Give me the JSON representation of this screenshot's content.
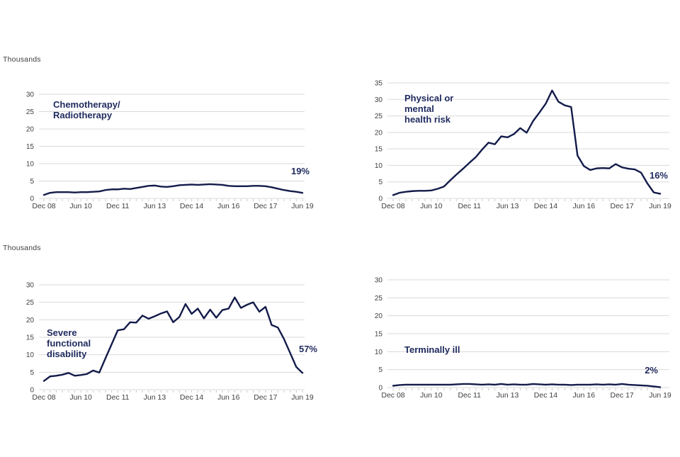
{
  "colors": {
    "background": "#ffffff",
    "line": "#131b4a",
    "title": "#1f2a5e",
    "grid": "#d9d9d9",
    "tick": "#c9c9c9",
    "axis_text": "#404040"
  },
  "chart_data": [
    {
      "type": "line",
      "title": "Chemotherapy/Radiotherapy",
      "title_lines": [
        "Chemotherapy/",
        "Radiotherapy"
      ],
      "unit_label": "Thousands",
      "pct_label": "19%",
      "legend_position": "none",
      "grid": "horizontal",
      "frequency": "quarterly",
      "ylim": [
        0,
        30
      ],
      "y_ticks": [
        0,
        5,
        10,
        15,
        20,
        25,
        30
      ],
      "x_tick_labels": [
        "Dec 08",
        "Jun 10",
        "Dec 11",
        "Jun 13",
        "Dec 14",
        "Jun 16",
        "Dec 17",
        "Jun 19"
      ],
      "values": [
        1.0,
        1.6,
        1.8,
        1.8,
        1.8,
        1.7,
        1.8,
        1.8,
        1.9,
        2.0,
        2.4,
        2.6,
        2.6,
        2.8,
        2.7,
        3.0,
        3.3,
        3.6,
        3.7,
        3.4,
        3.3,
        3.5,
        3.8,
        3.9,
        4.0,
        3.9,
        4.0,
        4.1,
        4.0,
        3.9,
        3.6,
        3.5,
        3.5,
        3.5,
        3.6,
        3.6,
        3.5,
        3.2,
        2.8,
        2.4,
        2.1,
        1.9,
        1.6
      ]
    },
    {
      "type": "line",
      "title": "Physical or mental health risk",
      "title_lines": [
        "Physical or",
        "mental",
        "health risk"
      ],
      "unit_label": "",
      "pct_label": "16%",
      "legend_position": "none",
      "grid": "horizontal",
      "frequency": "quarterly",
      "ylim": [
        0,
        35
      ],
      "y_ticks": [
        0,
        5,
        10,
        15,
        20,
        25,
        30,
        35
      ],
      "x_tick_labels": [
        "Dec 08",
        "Jun 10",
        "Dec 11",
        "Jun 13",
        "Dec 14",
        "Jun 16",
        "Dec 17",
        "Jun 19"
      ],
      "values": [
        1.0,
        1.7,
        2.0,
        2.2,
        2.3,
        2.3,
        2.4,
        2.9,
        3.6,
        5.5,
        7.3,
        9.0,
        10.8,
        12.5,
        14.8,
        16.9,
        16.4,
        18.8,
        18.5,
        19.5,
        21.3,
        19.9,
        23.4,
        26.0,
        28.7,
        32.7,
        29.3,
        28.2,
        27.7,
        13.0,
        9.8,
        8.6,
        9.1,
        9.2,
        9.1,
        10.4,
        9.4,
        9.0,
        8.8,
        7.8,
        4.5,
        1.8,
        1.4
      ]
    },
    {
      "type": "line",
      "title": "Severe functional disability",
      "title_lines": [
        "Severe",
        "functional",
        "disability"
      ],
      "unit_label": "Thousands",
      "pct_label": "57%",
      "legend_position": "none",
      "grid": "horizontal",
      "frequency": "quarterly",
      "ylim": [
        0,
        30
      ],
      "y_ticks": [
        0,
        5,
        10,
        15,
        20,
        25,
        30
      ],
      "x_tick_labels": [
        "Dec 08",
        "Jun 10",
        "Dec 11",
        "Jun 13",
        "Dec 14",
        "Jun 16",
        "Dec 17",
        "Jun 19"
      ],
      "values": [
        2.5,
        3.8,
        4.0,
        4.3,
        4.8,
        4.0,
        4.2,
        4.5,
        5.5,
        4.9,
        9.0,
        13.0,
        17.0,
        17.3,
        19.3,
        19.2,
        21.2,
        20.3,
        21.0,
        21.8,
        22.4,
        19.3,
        20.8,
        24.5,
        21.7,
        23.2,
        20.4,
        22.9,
        20.6,
        22.8,
        23.2,
        26.4,
        23.4,
        24.3,
        25.0,
        22.3,
        23.7,
        18.5,
        17.8,
        14.5,
        10.5,
        6.5,
        4.8
      ]
    },
    {
      "type": "line",
      "title": "Terminally ill",
      "title_lines": [
        "Terminally ill"
      ],
      "unit_label": "",
      "pct_label": "2%",
      "legend_position": "none",
      "grid": "horizontal",
      "frequency": "quarterly",
      "ylim": [
        0,
        30
      ],
      "y_ticks": [
        0,
        5,
        10,
        15,
        20,
        25,
        30
      ],
      "x_tick_labels": [
        "Dec 08",
        "Jun 10",
        "Dec 11",
        "Jun 13",
        "Dec 14",
        "Jun 16",
        "Dec 17",
        "Jun 19"
      ],
      "values": [
        0.5,
        0.7,
        0.8,
        0.8,
        0.8,
        0.8,
        0.8,
        0.8,
        0.8,
        0.8,
        0.9,
        1.0,
        1.0,
        0.9,
        0.8,
        0.9,
        0.8,
        1.0,
        0.8,
        0.9,
        0.8,
        0.8,
        1.0,
        0.9,
        0.8,
        0.9,
        0.8,
        0.8,
        0.7,
        0.8,
        0.8,
        0.8,
        0.9,
        0.8,
        0.9,
        0.8,
        1.0,
        0.8,
        0.7,
        0.6,
        0.5,
        0.3,
        0.1
      ]
    }
  ]
}
